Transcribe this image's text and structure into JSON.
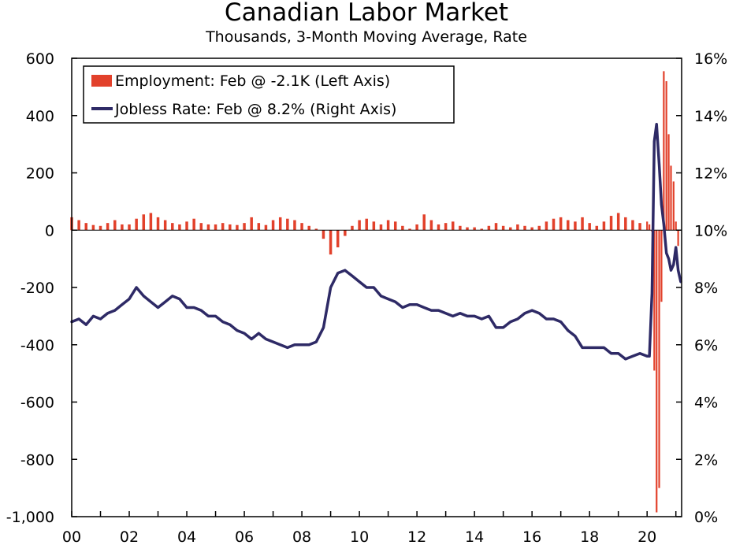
{
  "chart_data": {
    "type": "bar+line",
    "title": "Canadian Labor Market",
    "subtitle": "Thousands, 3-Month Moving Average, Rate",
    "x_range": [
      2000.0,
      2021.2
    ],
    "x_tick_labels": [
      "00",
      "02",
      "04",
      "06",
      "08",
      "10",
      "12",
      "14",
      "16",
      "18",
      "20"
    ],
    "x_tick_values": [
      2000,
      2002,
      2004,
      2006,
      2008,
      2010,
      2012,
      2014,
      2016,
      2018,
      2020
    ],
    "left_axis": {
      "ylim": [
        -1000,
        600
      ],
      "tick_values": [
        600,
        400,
        200,
        0,
        -200,
        -400,
        -600,
        -800,
        -1000
      ],
      "tick_labels": [
        "600",
        "400",
        "200",
        "0",
        "-200",
        "-400",
        "-600",
        "-800",
        "-1,000"
      ]
    },
    "right_axis": {
      "ylim": [
        0,
        16
      ],
      "tick_values": [
        16,
        14,
        12,
        10,
        8,
        6,
        4,
        2,
        0
      ],
      "tick_labels": [
        "16%",
        "14%",
        "12%",
        "10%",
        "8%",
        "6%",
        "4%",
        "2%",
        "0%"
      ]
    },
    "grid": false,
    "legend_position": "top-left",
    "colors": {
      "employment": "#e2412b",
      "jobless": "#2e2a66"
    },
    "series": [
      {
        "name": "Employment: Feb @ -2.1K (Left Axis)",
        "axis": "left",
        "type": "bar",
        "points": [
          [
            2000.0,
            45
          ],
          [
            2000.25,
            35
          ],
          [
            2000.5,
            25
          ],
          [
            2000.75,
            18
          ],
          [
            2001.0,
            15
          ],
          [
            2001.25,
            25
          ],
          [
            2001.5,
            35
          ],
          [
            2001.75,
            20
          ],
          [
            2002.0,
            20
          ],
          [
            2002.25,
            40
          ],
          [
            2002.5,
            55
          ],
          [
            2002.75,
            60
          ],
          [
            2003.0,
            45
          ],
          [
            2003.25,
            35
          ],
          [
            2003.5,
            25
          ],
          [
            2003.75,
            20
          ],
          [
            2004.0,
            30
          ],
          [
            2004.25,
            40
          ],
          [
            2004.5,
            25
          ],
          [
            2004.75,
            20
          ],
          [
            2005.0,
            20
          ],
          [
            2005.25,
            25
          ],
          [
            2005.5,
            20
          ],
          [
            2005.75,
            18
          ],
          [
            2006.0,
            25
          ],
          [
            2006.25,
            45
          ],
          [
            2006.5,
            25
          ],
          [
            2006.75,
            18
          ],
          [
            2007.0,
            35
          ],
          [
            2007.25,
            45
          ],
          [
            2007.5,
            40
          ],
          [
            2007.75,
            35
          ],
          [
            2008.0,
            25
          ],
          [
            2008.25,
            15
          ],
          [
            2008.5,
            5
          ],
          [
            2008.75,
            -30
          ],
          [
            2009.0,
            -85
          ],
          [
            2009.25,
            -60
          ],
          [
            2009.5,
            -20
          ],
          [
            2009.75,
            15
          ],
          [
            2010.0,
            35
          ],
          [
            2010.25,
            40
          ],
          [
            2010.5,
            30
          ],
          [
            2010.75,
            20
          ],
          [
            2011.0,
            35
          ],
          [
            2011.25,
            30
          ],
          [
            2011.5,
            15
          ],
          [
            2011.75,
            5
          ],
          [
            2012.0,
            20
          ],
          [
            2012.25,
            55
          ],
          [
            2012.5,
            35
          ],
          [
            2012.75,
            20
          ],
          [
            2013.0,
            25
          ],
          [
            2013.25,
            30
          ],
          [
            2013.5,
            15
          ],
          [
            2013.75,
            10
          ],
          [
            2014.0,
            10
          ],
          [
            2014.25,
            5
          ],
          [
            2014.5,
            15
          ],
          [
            2014.75,
            25
          ],
          [
            2015.0,
            15
          ],
          [
            2015.25,
            10
          ],
          [
            2015.5,
            20
          ],
          [
            2015.75,
            15
          ],
          [
            2016.0,
            10
          ],
          [
            2016.25,
            15
          ],
          [
            2016.5,
            30
          ],
          [
            2016.75,
            40
          ],
          [
            2017.0,
            45
          ],
          [
            2017.25,
            35
          ],
          [
            2017.5,
            30
          ],
          [
            2017.75,
            45
          ],
          [
            2018.0,
            25
          ],
          [
            2018.25,
            15
          ],
          [
            2018.5,
            30
          ],
          [
            2018.75,
            50
          ],
          [
            2019.0,
            60
          ],
          [
            2019.25,
            45
          ],
          [
            2019.5,
            35
          ],
          [
            2019.75,
            25
          ],
          [
            2020.0,
            30
          ],
          [
            2020.08,
            20
          ],
          [
            2020.17,
            -5
          ],
          [
            2020.25,
            -490
          ],
          [
            2020.33,
            -985
          ],
          [
            2020.42,
            -900
          ],
          [
            2020.5,
            -250
          ],
          [
            2020.58,
            555
          ],
          [
            2020.67,
            520
          ],
          [
            2020.75,
            335
          ],
          [
            2020.83,
            225
          ],
          [
            2020.92,
            170
          ],
          [
            2021.0,
            30
          ],
          [
            2021.08,
            -55
          ],
          [
            2021.17,
            -2.1
          ]
        ]
      },
      {
        "name": "Jobless Rate: Feb @ 8.2% (Right Axis)",
        "axis": "right",
        "type": "line",
        "points": [
          [
            2000.0,
            6.8
          ],
          [
            2000.25,
            6.9
          ],
          [
            2000.5,
            6.7
          ],
          [
            2000.75,
            7.0
          ],
          [
            2001.0,
            6.9
          ],
          [
            2001.25,
            7.1
          ],
          [
            2001.5,
            7.2
          ],
          [
            2001.75,
            7.4
          ],
          [
            2002.0,
            7.6
          ],
          [
            2002.25,
            8.0
          ],
          [
            2002.5,
            7.7
          ],
          [
            2002.75,
            7.5
          ],
          [
            2003.0,
            7.3
          ],
          [
            2003.25,
            7.5
          ],
          [
            2003.5,
            7.7
          ],
          [
            2003.75,
            7.6
          ],
          [
            2004.0,
            7.3
          ],
          [
            2004.25,
            7.3
          ],
          [
            2004.5,
            7.2
          ],
          [
            2004.75,
            7.0
          ],
          [
            2005.0,
            7.0
          ],
          [
            2005.25,
            6.8
          ],
          [
            2005.5,
            6.7
          ],
          [
            2005.75,
            6.5
          ],
          [
            2006.0,
            6.4
          ],
          [
            2006.25,
            6.2
          ],
          [
            2006.5,
            6.4
          ],
          [
            2006.75,
            6.2
          ],
          [
            2007.0,
            6.1
          ],
          [
            2007.25,
            6.0
          ],
          [
            2007.5,
            5.9
          ],
          [
            2007.75,
            6.0
          ],
          [
            2008.0,
            6.0
          ],
          [
            2008.25,
            6.0
          ],
          [
            2008.5,
            6.1
          ],
          [
            2008.75,
            6.6
          ],
          [
            2009.0,
            8.0
          ],
          [
            2009.25,
            8.5
          ],
          [
            2009.5,
            8.6
          ],
          [
            2009.75,
            8.4
          ],
          [
            2010.0,
            8.2
          ],
          [
            2010.25,
            8.0
          ],
          [
            2010.5,
            8.0
          ],
          [
            2010.75,
            7.7
          ],
          [
            2011.0,
            7.6
          ],
          [
            2011.25,
            7.5
          ],
          [
            2011.5,
            7.3
          ],
          [
            2011.75,
            7.4
          ],
          [
            2012.0,
            7.4
          ],
          [
            2012.25,
            7.3
          ],
          [
            2012.5,
            7.2
          ],
          [
            2012.75,
            7.2
          ],
          [
            2013.0,
            7.1
          ],
          [
            2013.25,
            7.0
          ],
          [
            2013.5,
            7.1
          ],
          [
            2013.75,
            7.0
          ],
          [
            2014.0,
            7.0
          ],
          [
            2014.25,
            6.9
          ],
          [
            2014.5,
            7.0
          ],
          [
            2014.75,
            6.6
          ],
          [
            2015.0,
            6.6
          ],
          [
            2015.25,
            6.8
          ],
          [
            2015.5,
            6.9
          ],
          [
            2015.75,
            7.1
          ],
          [
            2016.0,
            7.2
          ],
          [
            2016.25,
            7.1
          ],
          [
            2016.5,
            6.9
          ],
          [
            2016.75,
            6.9
          ],
          [
            2017.0,
            6.8
          ],
          [
            2017.25,
            6.5
          ],
          [
            2017.5,
            6.3
          ],
          [
            2017.75,
            5.9
          ],
          [
            2018.0,
            5.9
          ],
          [
            2018.25,
            5.9
          ],
          [
            2018.5,
            5.9
          ],
          [
            2018.75,
            5.7
          ],
          [
            2019.0,
            5.7
          ],
          [
            2019.25,
            5.5
          ],
          [
            2019.5,
            5.6
          ],
          [
            2019.75,
            5.7
          ],
          [
            2020.0,
            5.6
          ],
          [
            2020.08,
            5.6
          ],
          [
            2020.17,
            7.8
          ],
          [
            2020.25,
            13.1
          ],
          [
            2020.33,
            13.7
          ],
          [
            2020.42,
            12.3
          ],
          [
            2020.5,
            10.9
          ],
          [
            2020.58,
            10.2
          ],
          [
            2020.67,
            9.2
          ],
          [
            2020.75,
            9.0
          ],
          [
            2020.83,
            8.6
          ],
          [
            2020.92,
            8.8
          ],
          [
            2021.0,
            9.4
          ],
          [
            2021.08,
            8.6
          ],
          [
            2021.17,
            8.2
          ]
        ]
      }
    ]
  }
}
